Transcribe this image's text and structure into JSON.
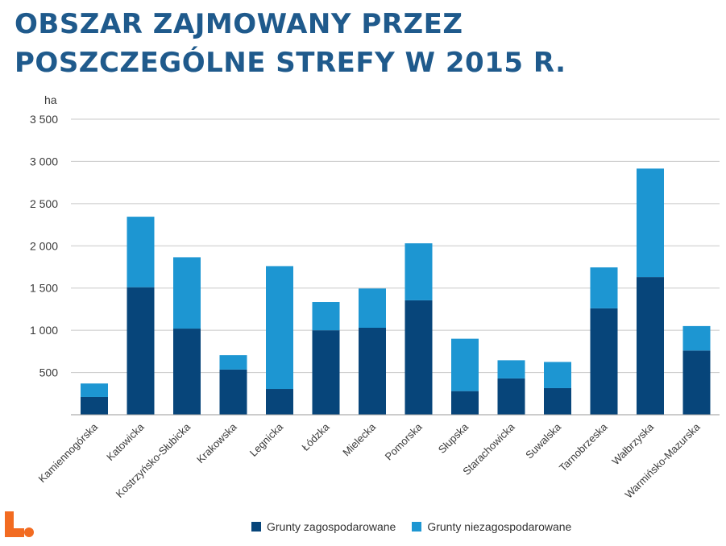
{
  "title": "OBSZAR ZAJMOWANY PRZEZ POSZCZEGÓLNE STREFY W 2015 R.",
  "chart_data": {
    "type": "bar",
    "stacked": true,
    "unit_label": "ha",
    "categories": [
      "Kamiennogórska",
      "Katowicka",
      "Kostrzyńsko-Słubicka",
      "Krakowska",
      "Legnicka",
      "Łódzka",
      "Mielecka",
      "Pomorska",
      "Słupska",
      "Starachowicka",
      "Suwalska",
      "Tarnobrzeska",
      "Wałbrzyska",
      "Warmińsko-Mazurska"
    ],
    "series": [
      {
        "name": "Grunty zagospodarowane",
        "color": "#07457a",
        "values": [
          210,
          1510,
          1020,
          535,
          305,
          1000,
          1030,
          1355,
          280,
          430,
          315,
          1260,
          1630,
          760
        ]
      },
      {
        "name": "Grunty niezagospodarowane",
        "color": "#1d96d2",
        "values": [
          160,
          835,
          845,
          170,
          1455,
          335,
          465,
          675,
          620,
          215,
          310,
          485,
          1285,
          290
        ]
      }
    ],
    "ylim": [
      0,
      3500
    ],
    "yticks": [
      500,
      1000,
      1500,
      2000,
      2500,
      3000,
      3500
    ],
    "ytick_labels": [
      "500",
      "1 000",
      "1 500",
      "2 000",
      "2 500",
      "3 000",
      "3 500"
    ],
    "grid": true,
    "legend_position": "bottom"
  },
  "logo": {
    "color": "#f26b21",
    "icon": "brand-logo-icon"
  }
}
